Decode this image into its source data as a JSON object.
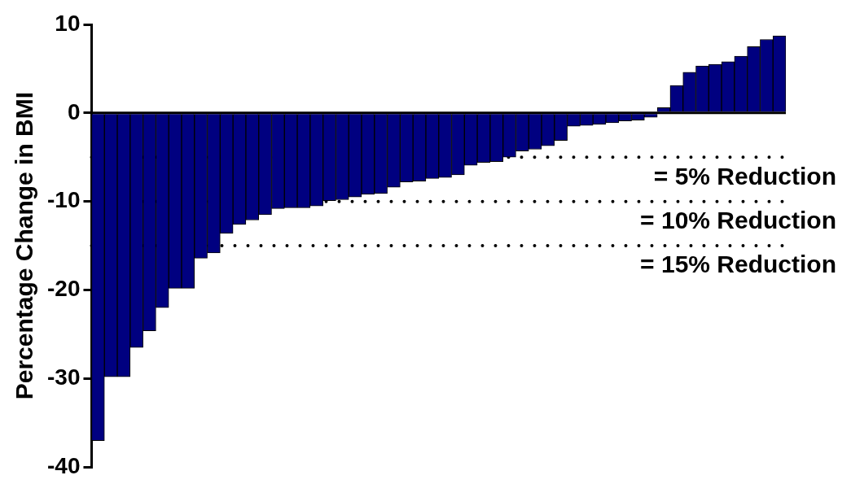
{
  "chart_data": {
    "type": "bar",
    "ylabel": "Percentage Change in BMI",
    "categories": [
      null,
      null,
      null,
      null,
      null,
      null,
      null,
      null,
      null,
      null,
      null,
      null,
      null,
      null,
      null,
      null,
      null,
      null,
      null,
      null,
      null,
      null,
      null,
      null,
      null,
      null,
      null,
      null,
      null,
      null,
      null,
      null,
      null,
      null,
      null,
      null,
      null,
      null,
      null,
      null,
      null,
      null,
      null,
      null,
      null,
      null,
      null,
      null,
      null,
      null,
      null,
      null,
      null,
      null
    ],
    "values": [
      -37,
      -29.8,
      -29.8,
      -26.5,
      -24.6,
      -22,
      -19.8,
      -19.8,
      -16.4,
      -15.8,
      -13.6,
      -12.6,
      -12.1,
      -11.5,
      -10.8,
      -10.7,
      -10.7,
      -10.5,
      -9.9,
      -9.8,
      -9.5,
      -9.2,
      -9.1,
      -8.4,
      -7.8,
      -7.7,
      -7.4,
      -7.3,
      -7,
      -5.9,
      -5.6,
      -5.5,
      -5,
      -4.3,
      -4.1,
      -3.7,
      -3.1,
      -1.5,
      -1.4,
      -1.3,
      -1.1,
      -0.9,
      -0.8,
      -0.5,
      0.6,
      3.1,
      4.6,
      5.3,
      5.5,
      5.8,
      6.4,
      7.5,
      8.3,
      8.7
    ],
    "color": "#000080",
    "ylim": [
      -40,
      10
    ],
    "yticks": [
      -40,
      -30,
      -20,
      -10,
      0,
      10
    ],
    "grid": false,
    "legend": false,
    "annotations": [
      "= 5% Reduction",
      "= 10% Reduction",
      "= 15% Reduction"
    ],
    "ref_lines": [
      {
        "axis": "y",
        "value": -5,
        "line_style": "dotted",
        "color": "#000000"
      },
      {
        "axis": "y",
        "value": -10,
        "line_style": "dotted",
        "color": "#000000"
      },
      {
        "axis": "y",
        "value": -15,
        "line_style": "dotted",
        "color": "#000000"
      }
    ]
  }
}
